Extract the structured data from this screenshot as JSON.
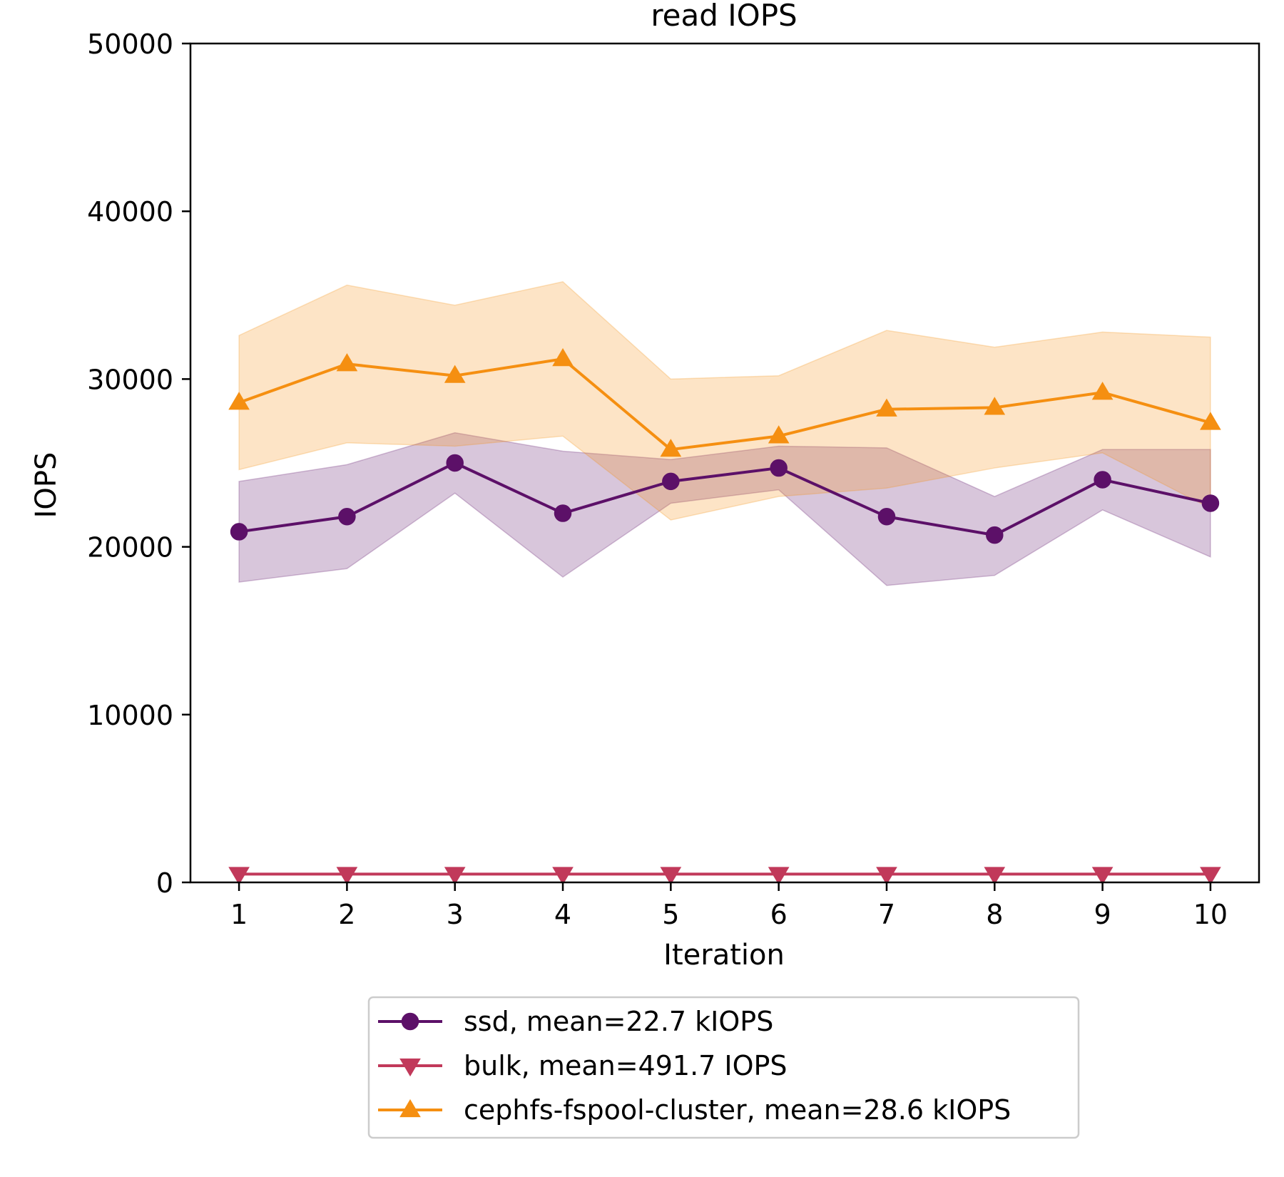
{
  "chart_data": {
    "type": "line",
    "title": "read IOPS",
    "xlabel": "Iteration",
    "ylabel": "IOPS",
    "x": [
      1,
      2,
      3,
      4,
      5,
      6,
      7,
      8,
      9,
      10
    ],
    "xticks": [
      "1",
      "2",
      "3",
      "4",
      "5",
      "6",
      "7",
      "8",
      "9",
      "10"
    ],
    "yticks": [
      "0",
      "10000",
      "20000",
      "30000",
      "40000",
      "50000"
    ],
    "ylim": [
      0,
      50000
    ],
    "xlim": [
      0.55,
      10.45
    ],
    "grid": false,
    "legend_position": "below-center",
    "series": [
      {
        "name": "ssd, mean=22.7 kIOPS",
        "color": "#5c1068",
        "marker": "circle",
        "values": [
          20900,
          21800,
          25000,
          22000,
          23900,
          24700,
          21800,
          20700,
          24000,
          22600
        ],
        "band_upper": [
          23900,
          24900,
          26800,
          25700,
          25200,
          26000,
          25900,
          23000,
          25800,
          25800
        ],
        "band_lower": [
          17900,
          18700,
          23200,
          18200,
          22600,
          23400,
          17700,
          18300,
          22200,
          19400
        ]
      },
      {
        "name": "bulk, mean=491.7 IOPS",
        "color": "#c1395a",
        "marker": "triangle-down",
        "values": [
          492,
          492,
          492,
          492,
          492,
          492,
          492,
          492,
          492,
          492
        ]
      },
      {
        "name": "cephfs-fspool-cluster, mean=28.6 kIOPS",
        "color": "#f58f11",
        "marker": "triangle-up",
        "values": [
          28600,
          30900,
          30200,
          31200,
          25800,
          26600,
          28200,
          28300,
          29200,
          27400
        ],
        "band_upper": [
          32600,
          35600,
          34400,
          35800,
          30000,
          30200,
          32900,
          31900,
          32800,
          32500
        ],
        "band_lower": [
          24600,
          26200,
          26000,
          26600,
          21600,
          23000,
          23500,
          24700,
          25600,
          22300
        ]
      }
    ]
  }
}
